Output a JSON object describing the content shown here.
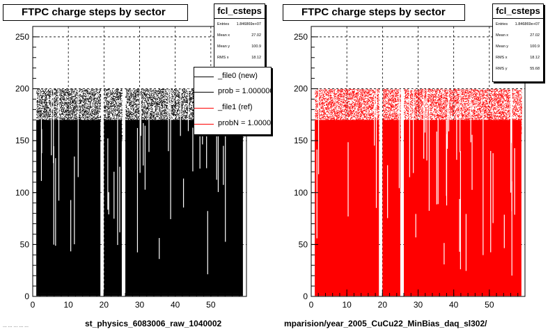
{
  "chart_data": [
    {
      "type": "scatter",
      "title": "FTPC charge steps by sector",
      "hist_name": "fcl_csteps",
      "xlim": [
        0,
        60
      ],
      "ylim": [
        0,
        260
      ],
      "x_ticks": [
        0,
        10,
        20,
        30,
        40,
        50
      ],
      "y_ticks": [
        0,
        50,
        100,
        150,
        200,
        250
      ],
      "grid": true,
      "series": [
        {
          "name": "_file0 (new)",
          "color": "#000000"
        }
      ],
      "occupied_x_bins": [
        [
          1,
          19
        ],
        [
          20,
          25
        ],
        [
          26,
          59
        ]
      ],
      "gap_x_bins": [
        [
          19,
          20
        ],
        [
          25,
          26
        ]
      ],
      "y_band_max": 200,
      "stats": [
        {
          "label": "Entries",
          "value": "1.846869e+07"
        },
        {
          "label": "Mean x",
          "value": "27.02"
        },
        {
          "label": "Mean y",
          "value": "100.9"
        },
        {
          "label": "RMS x",
          "value": "18.12"
        }
      ],
      "legend": [
        {
          "label": "_file0 (new)",
          "color": "#000000"
        },
        {
          "label": "prob = 1.000000",
          "color": "#000000"
        },
        {
          "label": "_file1 (ref)",
          "color": "#ff0000"
        },
        {
          "label": "probN = 1.000000",
          "color": "#ff0000"
        }
      ],
      "caption": "st_physics_6083006_raw_1040002"
    },
    {
      "type": "scatter",
      "title": "FTPC charge steps by sector",
      "hist_name": "fcl_csteps",
      "xlim": [
        0,
        60
      ],
      "ylim": [
        0,
        260
      ],
      "x_ticks": [
        0,
        10,
        20,
        30,
        40,
        50
      ],
      "y_ticks": [
        0,
        50,
        100,
        150,
        200,
        250
      ],
      "grid": true,
      "series": [
        {
          "name": "_file1 (ref)",
          "color": "#ff0000"
        }
      ],
      "occupied_x_bins": [
        [
          1,
          19
        ],
        [
          20,
          25
        ],
        [
          26,
          59
        ]
      ],
      "gap_x_bins": [
        [
          19,
          20
        ],
        [
          25,
          26
        ]
      ],
      "y_band_max": 200,
      "stats": [
        {
          "label": "Entries",
          "value": "1.846869e+07"
        },
        {
          "label": "Mean x",
          "value": "27.02"
        },
        {
          "label": "Mean y",
          "value": "100.9"
        },
        {
          "label": "RMS x",
          "value": "18.12"
        },
        {
          "label": "RMS y",
          "value": "55.68"
        }
      ],
      "caption": "mparision/year_2005_CuCu22_MinBias_daq_sl302/"
    }
  ],
  "footer_text": "... ... ... ... ..."
}
